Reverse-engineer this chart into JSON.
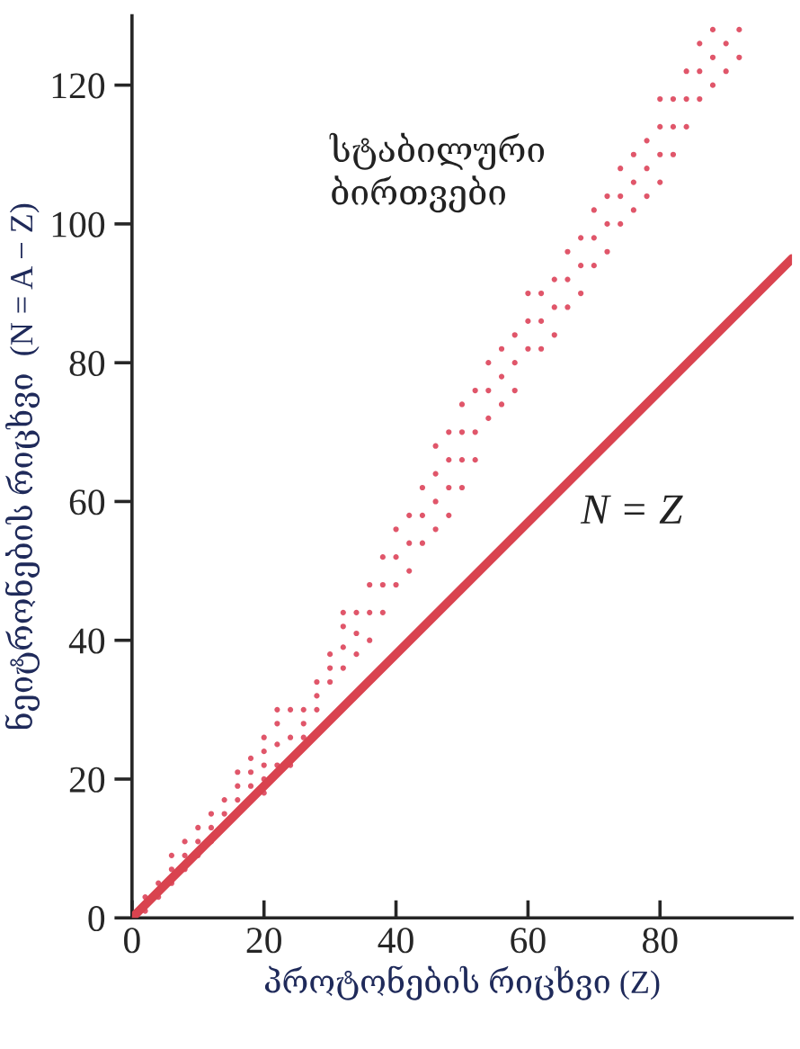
{
  "chart_data": {
    "type": "scatter",
    "xlabel": "პროტონების რიცხვი (Z)",
    "ylabel": "ნეიტრონების რიცხვი  (N = A − Z)",
    "xlim": [
      0,
      100
    ],
    "ylim": [
      0,
      130
    ],
    "xticks": [
      0,
      20,
      40,
      60,
      80
    ],
    "yticks": [
      0,
      20,
      40,
      60,
      80,
      100,
      120
    ],
    "grid": false,
    "legend": false,
    "annotations": [
      "სტაბილური\nბირთვები",
      "N = Z"
    ],
    "series": [
      {
        "color": "#e0566a",
        "marker": "circle",
        "x": [
          2,
          2,
          4,
          4,
          6,
          6,
          6,
          8,
          8,
          8,
          10,
          10,
          10,
          12,
          12,
          12,
          14,
          14,
          16,
          16,
          16,
          18,
          18,
          18,
          20,
          20,
          20,
          20,
          20,
          22,
          22,
          22,
          22,
          24,
          24,
          24,
          26,
          26,
          26,
          28,
          28,
          28,
          30,
          30,
          30,
          32,
          32,
          32,
          32,
          34,
          34,
          34,
          36,
          36,
          36,
          38,
          38,
          38,
          40,
          40,
          40,
          42,
          42,
          42,
          44,
          44,
          44,
          46,
          46,
          46,
          46,
          48,
          48,
          48,
          48,
          50,
          50,
          50,
          50,
          52,
          52,
          52,
          54,
          54,
          54,
          56,
          56,
          56,
          58,
          58,
          58,
          60,
          60,
          60,
          62,
          62,
          62,
          64,
          64,
          64,
          66,
          66,
          66,
          68,
          68,
          68,
          70,
          70,
          70,
          72,
          72,
          72,
          74,
          74,
          74,
          76,
          76,
          76,
          78,
          78,
          78,
          80,
          80,
          80,
          80,
          82,
          82,
          82,
          84,
          84,
          84,
          86,
          86,
          86,
          88,
          88,
          88,
          90,
          90,
          92,
          92
        ],
        "values": [
          1,
          3,
          3,
          5,
          5,
          7,
          9,
          7,
          9,
          11,
          9,
          11,
          13,
          11,
          13,
          15,
          15,
          17,
          17,
          19,
          21,
          19,
          21,
          23,
          18,
          20,
          22,
          24,
          26,
          22,
          25,
          28,
          30,
          22,
          26,
          30,
          26,
          28,
          30,
          30,
          32,
          34,
          34,
          36,
          38,
          36,
          39,
          42,
          44,
          38,
          41,
          44,
          40,
          44,
          48,
          44,
          48,
          52,
          48,
          52,
          56,
          50,
          54,
          58,
          54,
          58,
          62,
          56,
          60,
          64,
          68,
          58,
          62,
          66,
          70,
          62,
          66,
          70,
          74,
          66,
          70,
          76,
          72,
          76,
          80,
          74,
          78,
          82,
          76,
          80,
          84,
          82,
          86,
          90,
          82,
          86,
          90,
          84,
          88,
          92,
          88,
          92,
          96,
          90,
          94,
          98,
          94,
          98,
          102,
          96,
          100,
          104,
          100,
          104,
          108,
          102,
          106,
          110,
          104,
          108,
          112,
          106,
          110,
          114,
          118,
          110,
          114,
          118,
          114,
          118,
          122,
          118,
          122,
          126,
          120,
          124,
          128,
          122,
          126,
          124,
          128
        ]
      },
      {
        "type": "line",
        "color": "#d9434f",
        "line_style": "solid",
        "marker": "none",
        "x": [
          0,
          100
        ],
        "values": [
          0,
          95
        ]
      }
    ]
  }
}
